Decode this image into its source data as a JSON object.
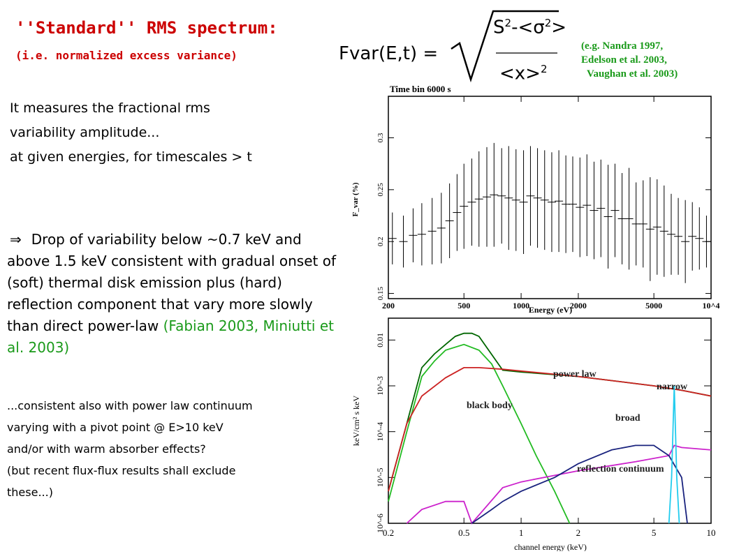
{
  "header": {
    "title": "''Standard'' RMS spectrum:",
    "subtitle": "(i.e. normalized excess variance)"
  },
  "formula": {
    "lhs": "Fvar(E,t) =",
    "num_a": "S",
    "num_b": "-<σ",
    "num_c": ">",
    "den_a": "<x>",
    "exponent": "2"
  },
  "references": [
    "(e.g. Nandra 1997,",
    "Edelson et al. 2003,",
    "Vaughan et al. 2003)"
  ],
  "intro": [
    "It measures the fractional rms",
    "variability amplitude...",
    "at given energies, for timescales > t"
  ],
  "bullet": {
    "symbol": "⇒",
    "text": "Drop of variability below ~0.7 keV and above 1.5 keV consistent with gradual onset of (soft) thermal disk emission plus (hard) reflection component that vary more slowly than direct power-law",
    "green_ref": "(Fabian 2003, Miniutti et al. 2003)"
  },
  "notes": [
    "...consistent also with power law continuum",
    "varying with a pivot point @ E>10 keV",
    "and/or with warm absorber effects?",
    "(but recent flux-flux results shall exclude",
    "these...)"
  ],
  "chart_data": [
    {
      "type": "scatter",
      "title": "Time bin 6000 s",
      "xlabel": "Energy (eV)",
      "ylabel": "F_var (%)",
      "xscale": "log",
      "xlim": [
        200,
        10000
      ],
      "ylim": [
        0.145,
        0.34
      ],
      "xticks": [
        "200",
        "500",
        "1000",
        "2000",
        "5000",
        "10^4"
      ],
      "yticks": [
        "0.15",
        "0.2",
        "0.25",
        "0.3"
      ],
      "x": [
        210,
        240,
        270,
        300,
        340,
        380,
        420,
        460,
        500,
        550,
        600,
        660,
        720,
        790,
        860,
        940,
        1030,
        1120,
        1220,
        1330,
        1450,
        1580,
        1720,
        1870,
        2040,
        2220,
        2420,
        2630,
        2870,
        3120,
        3400,
        3700,
        4030,
        4390,
        4780,
        5200,
        5660,
        6170,
        6720,
        7320,
        7970,
        8680,
        9460
      ],
      "y": [
        0.203,
        0.2,
        0.206,
        0.207,
        0.21,
        0.213,
        0.22,
        0.228,
        0.234,
        0.238,
        0.241,
        0.243,
        0.245,
        0.244,
        0.242,
        0.24,
        0.238,
        0.244,
        0.242,
        0.24,
        0.238,
        0.239,
        0.236,
        0.236,
        0.233,
        0.235,
        0.23,
        0.232,
        0.224,
        0.23,
        0.222,
        0.222,
        0.217,
        0.217,
        0.212,
        0.214,
        0.21,
        0.207,
        0.205,
        0.2,
        0.205,
        0.203,
        0.2
      ],
      "err": [
        0.025,
        0.025,
        0.026,
        0.03,
        0.032,
        0.034,
        0.036,
        0.037,
        0.041,
        0.042,
        0.046,
        0.048,
        0.05,
        0.046,
        0.05,
        0.049,
        0.05,
        0.048,
        0.048,
        0.048,
        0.048,
        0.049,
        0.047,
        0.046,
        0.048,
        0.049,
        0.047,
        0.047,
        0.05,
        0.045,
        0.044,
        0.049,
        0.04,
        0.042,
        0.05,
        0.046,
        0.044,
        0.039,
        0.037,
        0.04,
        0.033,
        0.03,
        0.025
      ]
    },
    {
      "type": "line",
      "xlabel": "channel energy (keV)",
      "ylabel": "keV/cm² s keV",
      "xscale": "log",
      "yscale": "log",
      "xlim": [
        0.2,
        10
      ],
      "ylim": [
        1e-06,
        0.03
      ],
      "xticks": [
        "0.2",
        "0.5",
        "1",
        "2",
        "5",
        "10"
      ],
      "yticks": [
        "10^-6",
        "10^-5",
        "10^-4",
        "10^-3",
        "0.01"
      ],
      "series_labels": {
        "power_law": "power law",
        "black_body": "black body",
        "narrow": "narrow",
        "broad": "broad",
        "reflection": "reflection continuum"
      },
      "series": [
        {
          "color": "#006600",
          "x": [
            0.2,
            0.25,
            0.3,
            0.35,
            0.4,
            0.45,
            0.5,
            0.55,
            0.6,
            0.8,
            1,
            2,
            3,
            5,
            7,
            10
          ],
          "y": [
            5e-06,
            0.00015,
            0.0025,
            0.005,
            0.008,
            0.012,
            0.014,
            0.014,
            0.012,
            0.0022,
            0.002,
            0.0016,
            0.0013,
            0.001,
            0.0008,
            0.0006
          ]
        },
        {
          "color": "#22bb22",
          "x": [
            0.2,
            0.25,
            0.3,
            0.35,
            0.4,
            0.5,
            0.6,
            0.7,
            0.8,
            1.0,
            1.2,
            1.5,
            1.8
          ],
          "y": [
            3e-06,
            0.0001,
            0.0016,
            0.0035,
            0.006,
            0.008,
            0.006,
            0.003,
            0.001,
            0.00015,
            3e-05,
            5e-06,
            1e-06
          ]
        },
        {
          "color": "#cc2222",
          "x": [
            0.2,
            0.25,
            0.3,
            0.4,
            0.5,
            0.6,
            0.8,
            1,
            2,
            3,
            5,
            7,
            10
          ],
          "y": [
            5e-06,
            0.00015,
            0.0006,
            0.0015,
            0.0025,
            0.0025,
            0.0023,
            0.0021,
            0.0016,
            0.0013,
            0.001,
            0.0008,
            0.0006
          ]
        },
        {
          "color": "#cc22cc",
          "x": [
            0.25,
            0.3,
            0.4,
            0.5,
            0.55,
            0.8,
            1,
            2,
            4,
            6,
            6.4,
            7,
            10
          ],
          "y": [
            1e-06,
            2e-06,
            3e-06,
            3e-06,
            1e-06,
            6e-06,
            8e-06,
            1.4e-05,
            2.2e-05,
            3e-05,
            5e-05,
            4.5e-05,
            4e-05
          ]
        },
        {
          "color": "#1a237e",
          "x": [
            0.55,
            0.7,
            0.8,
            1,
            1.5,
            2,
            3,
            4,
            5,
            6,
            7,
            7.5
          ],
          "y": [
            1e-06,
            2e-06,
            3e-06,
            5e-06,
            1e-05,
            2e-05,
            4e-05,
            5e-05,
            5e-05,
            3e-05,
            1e-05,
            1e-06
          ]
        },
        {
          "color": "#22ccee",
          "x": [
            6.0,
            6.2,
            6.3,
            6.4,
            6.5,
            6.6,
            6.8
          ],
          "y": [
            1e-06,
            1e-05,
            0.0001,
            0.001,
            0.0001,
            1e-05,
            1e-06
          ]
        }
      ]
    }
  ]
}
